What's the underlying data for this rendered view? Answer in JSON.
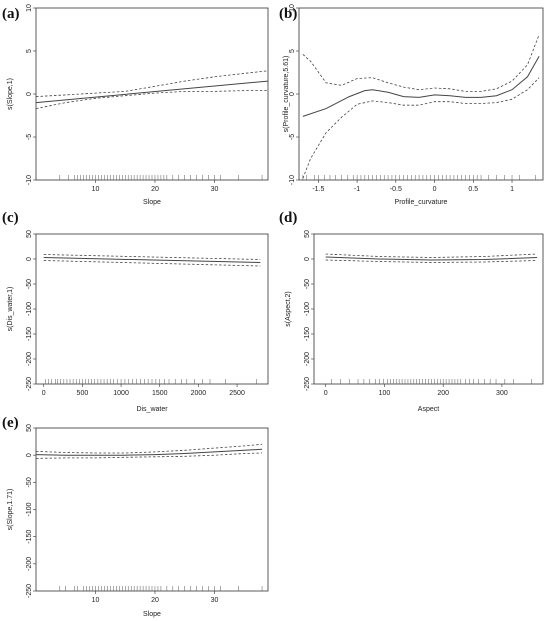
{
  "chart_data": [
    {
      "panel": "(a)",
      "type": "line",
      "xlabel": "Slope",
      "ylabel": "s(Slope,1)",
      "xlim": [
        0,
        39
      ],
      "ylim": [
        -10,
        10
      ],
      "xticks": [
        10,
        20,
        30
      ],
      "yticks": [
        -10,
        -5,
        0,
        5,
        10
      ],
      "series": [
        {
          "x": [
            0,
            39
          ],
          "y": [
            -1.0,
            1.5
          ]
        },
        {
          "x": [
            0,
            5,
            10,
            15,
            20,
            25,
            30,
            35,
            39
          ],
          "y": [
            -0.3,
            -0.1,
            0.1,
            0.3,
            0.9,
            1.5,
            2.0,
            2.4,
            2.7
          ]
        },
        {
          "x": [
            0,
            5,
            10,
            15,
            20,
            25,
            30,
            35,
            39
          ],
          "y": [
            -1.7,
            -1.0,
            -0.5,
            -0.2,
            0.1,
            0.3,
            0.3,
            0.4,
            0.4
          ]
        }
      ],
      "rug": [
        4,
        5.5,
        6.5,
        7,
        7.5,
        8,
        8.5,
        9,
        9.5,
        10,
        10.5,
        11,
        11.5,
        12,
        12.5,
        13,
        13.5,
        14,
        14.5,
        15,
        15.5,
        16,
        16.5,
        17,
        17.5,
        18,
        18.5,
        19,
        19.5,
        20,
        20.5,
        21,
        21.5,
        22,
        23,
        24,
        25,
        26,
        27,
        28,
        29,
        30,
        31,
        34,
        38
      ]
    },
    {
      "panel": "(b)",
      "type": "line",
      "xlabel": "Profile_curvature",
      "ylabel": "s(Profile_curvature,5.61)",
      "xlim": [
        -1.75,
        1.4
      ],
      "ylim": [
        -10,
        10
      ],
      "xticks": [
        -1.5,
        -1.0,
        -0.5,
        0.0,
        0.5,
        1.0
      ],
      "yticks": [
        -10,
        -5,
        0,
        5,
        10
      ],
      "series": [
        {
          "x": [
            -1.7,
            -1.4,
            -1.1,
            -0.9,
            -0.8,
            -0.6,
            -0.4,
            -0.2,
            0.0,
            0.2,
            0.4,
            0.6,
            0.8,
            1.0,
            1.2,
            1.35
          ],
          "y": [
            -2.6,
            -1.7,
            -0.3,
            0.4,
            0.5,
            0.2,
            -0.3,
            -0.4,
            -0.1,
            -0.2,
            -0.4,
            -0.4,
            -0.2,
            0.5,
            2.0,
            4.4
          ]
        },
        {
          "x": [
            -1.7,
            -1.6,
            -1.4,
            -1.2,
            -1.0,
            -0.8,
            -0.6,
            -0.4,
            -0.2,
            0.0,
            0.2,
            0.4,
            0.6,
            0.8,
            1.0,
            1.2,
            1.35
          ],
          "y": [
            4.6,
            3.8,
            1.3,
            1.0,
            1.8,
            1.9,
            1.3,
            0.8,
            0.5,
            0.7,
            0.6,
            0.3,
            0.3,
            0.6,
            1.5,
            3.4,
            6.9
          ]
        },
        {
          "x": [
            -1.7,
            -1.6,
            -1.4,
            -1.2,
            -1.0,
            -0.8,
            -0.6,
            -0.4,
            -0.2,
            0.0,
            0.2,
            0.4,
            0.6,
            0.8,
            1.0,
            1.2,
            1.35
          ],
          "y": [
            -9.8,
            -7.5,
            -4.5,
            -2.7,
            -1.2,
            -0.8,
            -1.0,
            -1.3,
            -1.3,
            -0.9,
            -0.9,
            -1.1,
            -1.1,
            -1.0,
            -0.6,
            0.5,
            1.9
          ]
        }
      ],
      "rug": [
        -1.7,
        -1.65,
        -1.55,
        -1.5,
        -1.42,
        -1.35,
        -1.28,
        -1.2,
        -1.12,
        -1.05,
        -1.0,
        -0.95,
        -0.9,
        -0.85,
        -0.8,
        -0.75,
        -0.7,
        -0.65,
        -0.6,
        -0.55,
        -0.5,
        -0.45,
        -0.4,
        -0.35,
        -0.3,
        -0.25,
        -0.2,
        -0.15,
        -0.1,
        -0.05,
        0.0,
        0.05,
        0.1,
        0.15,
        0.2,
        0.25,
        0.3,
        0.35,
        0.4,
        0.45,
        0.5,
        0.55,
        0.6,
        0.7,
        0.8,
        0.9,
        1.0,
        1.1,
        1.3
      ]
    },
    {
      "panel": "(c)",
      "type": "line",
      "xlabel": "Dis_water",
      "ylabel": "s(Dis_water,1)",
      "xlim": [
        -100,
        2900
      ],
      "ylim": [
        -250,
        50
      ],
      "xticks": [
        0,
        500,
        1000,
        1500,
        2000,
        2500
      ],
      "yticks": [
        -250,
        -200,
        -150,
        -100,
        -50,
        0,
        50
      ],
      "series": [
        {
          "x": [
            0,
            2800
          ],
          "y": [
            3,
            -7
          ]
        },
        {
          "x": [
            0,
            2800
          ],
          "y": [
            9,
            -1
          ]
        },
        {
          "x": [
            0,
            2800
          ],
          "y": [
            -3,
            -14
          ]
        }
      ],
      "rug": [
        20,
        60,
        100,
        150,
        180,
        220,
        260,
        300,
        340,
        380,
        420,
        460,
        500,
        540,
        580,
        620,
        660,
        700,
        740,
        780,
        820,
        860,
        900,
        950,
        1000,
        1050,
        1100,
        1150,
        1200,
        1250,
        1300,
        1350,
        1400,
        1450,
        1500,
        1560,
        1620,
        1700,
        1780,
        1850,
        1950,
        2050,
        2150,
        2350,
        2750
      ]
    },
    {
      "panel": "(d)",
      "type": "line",
      "xlabel": "Aspect",
      "ylabel": "s(Aspect,2)",
      "xlim": [
        -20,
        370
      ],
      "ylim": [
        -250,
        50
      ],
      "xticks": [
        0,
        100,
        200,
        300
      ],
      "yticks": [
        -250,
        -200,
        -150,
        -100,
        -50,
        0,
        50
      ],
      "series": [
        {
          "x": [
            0,
            90,
            180,
            270,
            360
          ],
          "y": [
            4,
            0,
            -2,
            -1,
            3
          ]
        },
        {
          "x": [
            0,
            90,
            180,
            270,
            360
          ],
          "y": [
            10,
            5,
            3,
            5,
            10
          ]
        },
        {
          "x": [
            0,
            90,
            180,
            270,
            360
          ],
          "y": [
            -2,
            -5,
            -7,
            -6,
            -3
          ]
        }
      ],
      "rug": [
        10,
        25,
        40,
        55,
        65,
        75,
        85,
        92,
        98,
        105,
        110,
        115,
        120,
        125,
        130,
        135,
        140,
        145,
        150,
        155,
        160,
        165,
        170,
        175,
        180,
        185,
        190,
        195,
        200,
        205,
        210,
        215,
        220,
        225,
        230,
        238,
        245,
        252,
        260,
        270,
        280,
        290,
        305,
        320,
        350
      ]
    },
    {
      "panel": "(e)",
      "type": "line",
      "xlabel": "Slope",
      "ylabel": "s(Slope,1.71)",
      "xlim": [
        0,
        39
      ],
      "ylim": [
        -250,
        50
      ],
      "xticks": [
        10,
        20,
        30
      ],
      "yticks": [
        -250,
        -200,
        -150,
        -100,
        -50,
        0,
        50
      ],
      "series": [
        {
          "x": [
            0,
            5,
            10,
            15,
            20,
            25,
            30,
            35,
            38
          ],
          "y": [
            1,
            0,
            0,
            0,
            1,
            3,
            6,
            9,
            11
          ]
        },
        {
          "x": [
            0,
            5,
            10,
            15,
            20,
            25,
            30,
            35,
            38
          ],
          "y": [
            7,
            5,
            4,
            4,
            6,
            9,
            13,
            17,
            20
          ]
        },
        {
          "x": [
            0,
            5,
            10,
            15,
            20,
            25,
            30,
            35,
            38
          ],
          "y": [
            -6,
            -5,
            -5,
            -4,
            -3,
            -2,
            0,
            3,
            4
          ]
        }
      ],
      "rug": [
        4,
        5,
        6.5,
        7,
        8,
        8.5,
        9,
        9.5,
        10,
        10.5,
        11,
        11.5,
        12,
        12.5,
        13,
        13.5,
        14,
        14.5,
        15,
        15.5,
        16,
        16.5,
        17,
        17.5,
        18,
        18.5,
        19,
        19.5,
        20,
        20.5,
        21,
        22,
        23,
        24,
        25,
        26,
        27,
        28,
        29,
        30,
        31,
        34,
        38
      ]
    }
  ]
}
